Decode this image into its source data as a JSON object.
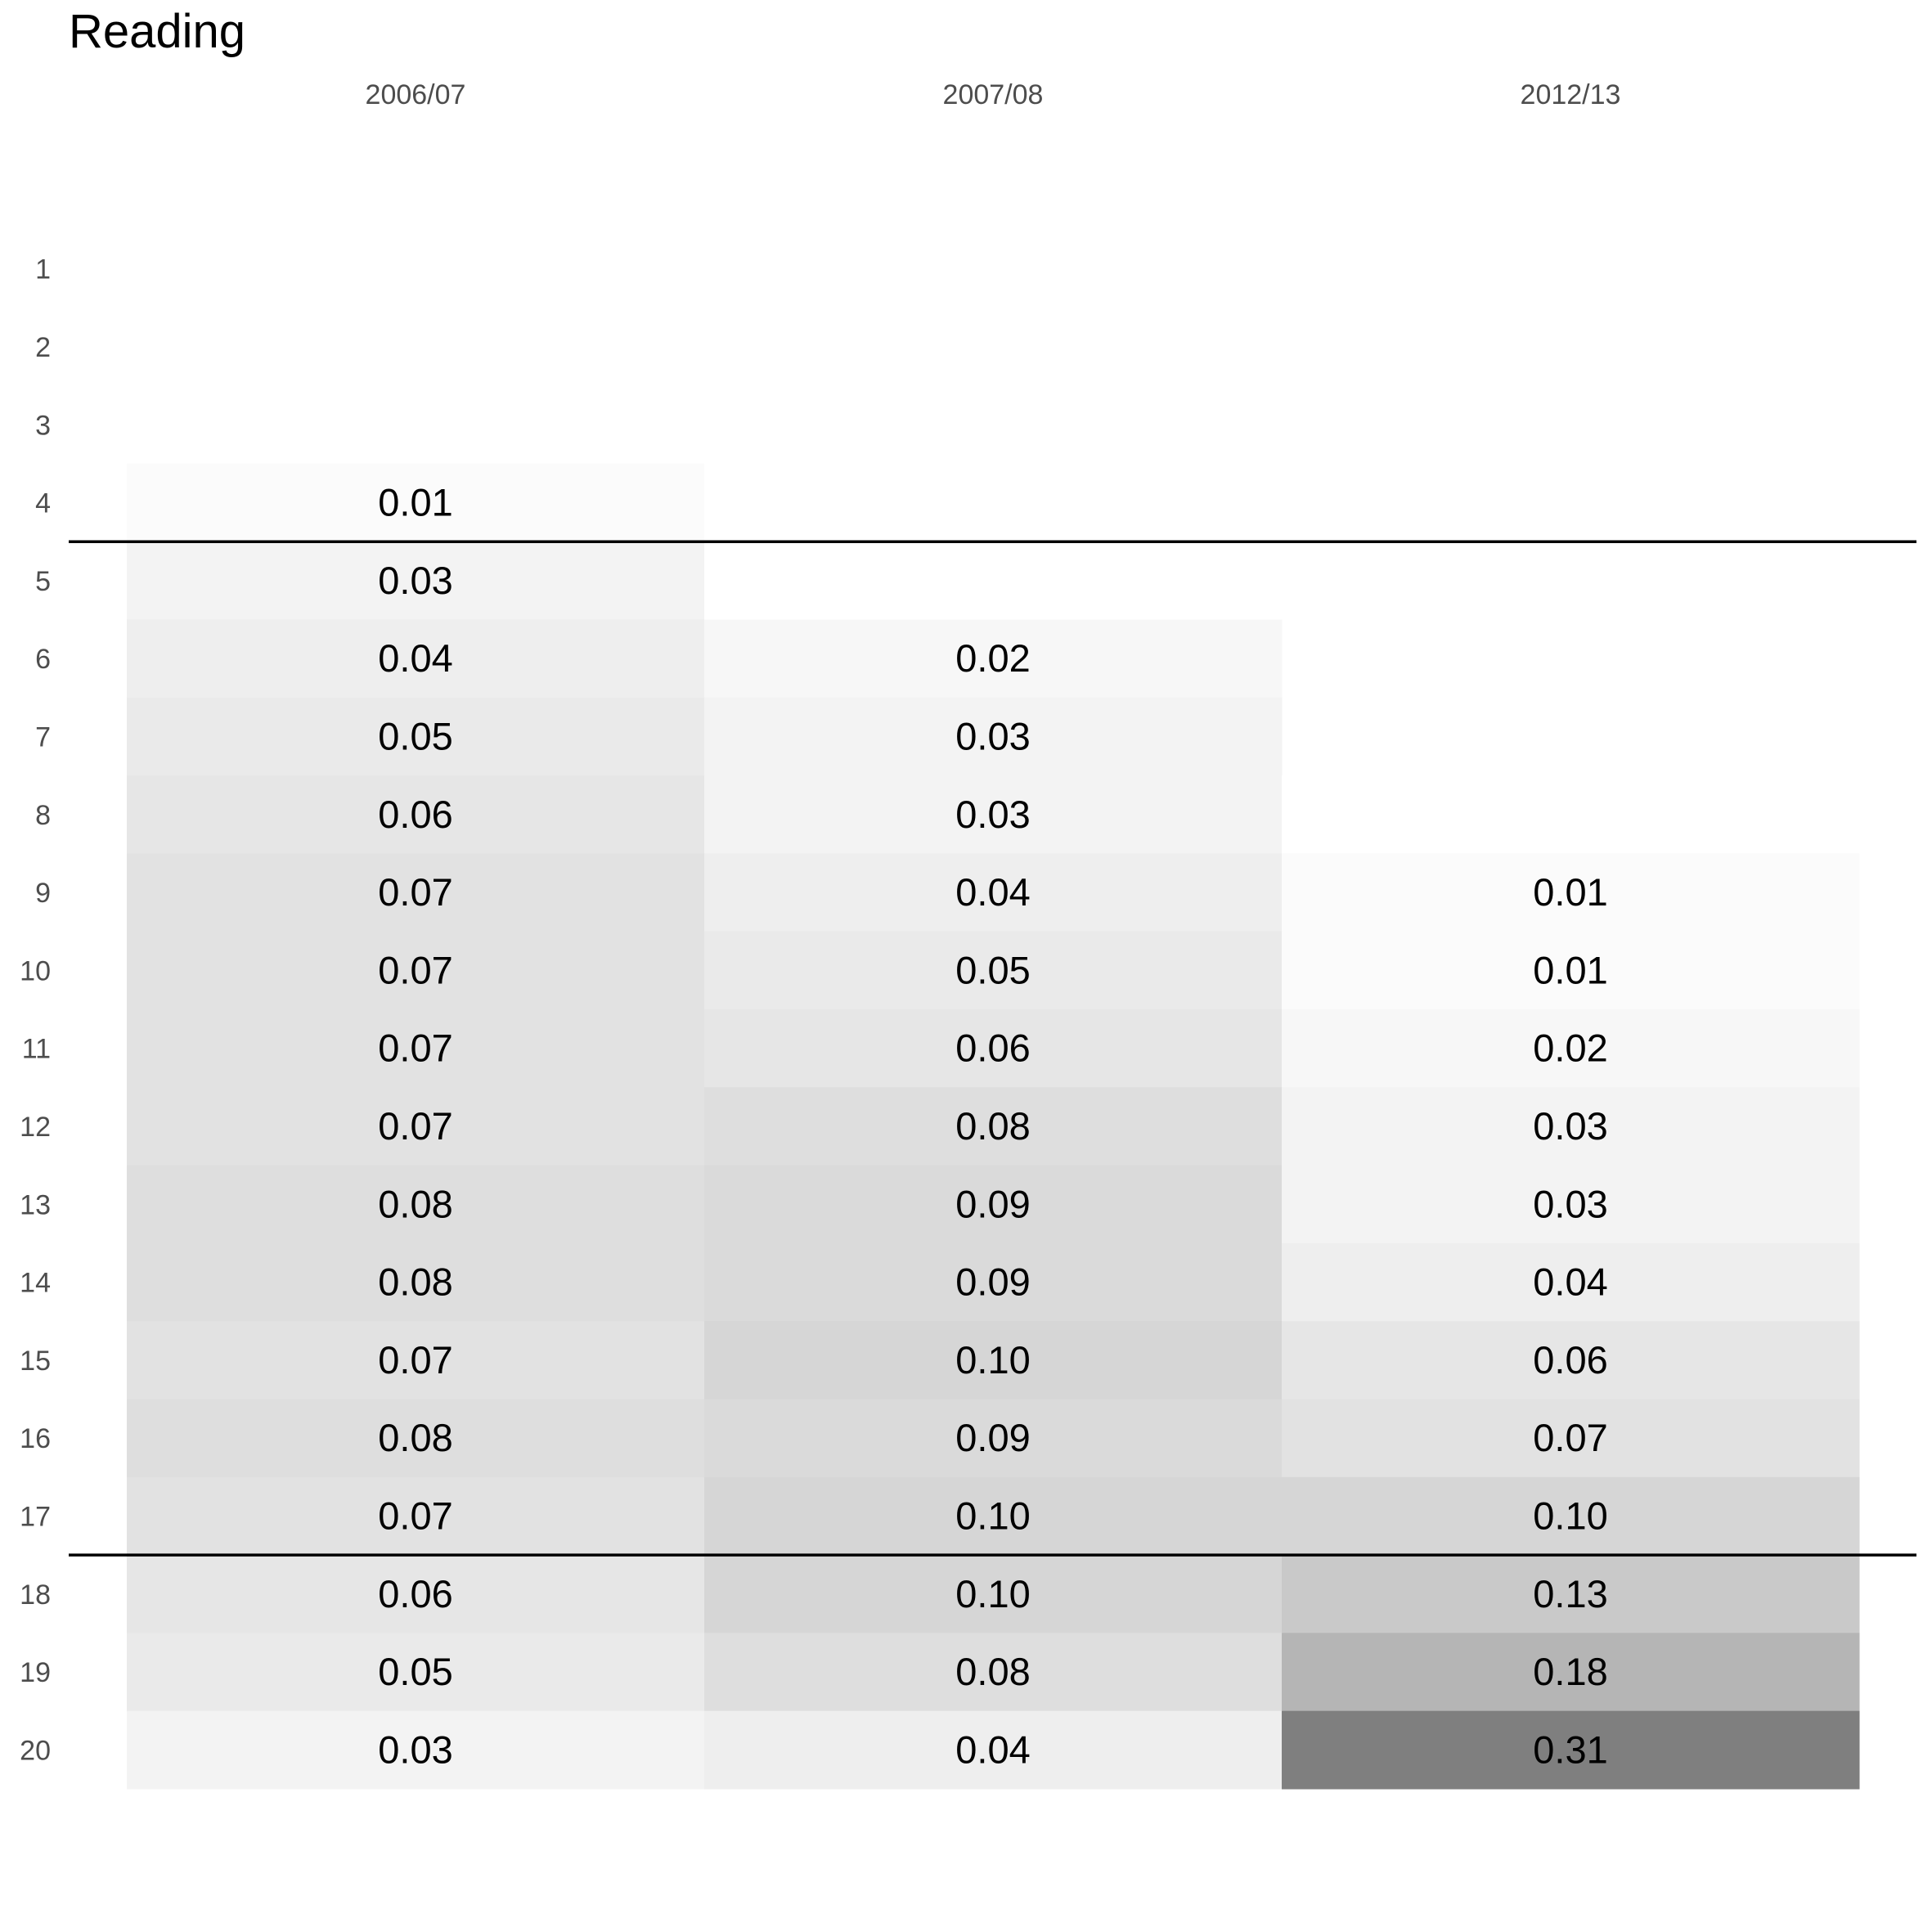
{
  "chart_data": {
    "type": "heatmap",
    "title": "Reading",
    "columns": [
      "2006/07",
      "2007/08",
      "2012/13"
    ],
    "rows": [
      "1",
      "2",
      "3",
      "4",
      "5",
      "6",
      "7",
      "8",
      "9",
      "10",
      "11",
      "12",
      "13",
      "14",
      "15",
      "16",
      "17",
      "18",
      "19",
      "20"
    ],
    "values": [
      [
        null,
        null,
        null
      ],
      [
        null,
        null,
        null
      ],
      [
        null,
        null,
        null
      ],
      [
        0.01,
        0.0,
        null
      ],
      [
        0.03,
        0.0,
        null
      ],
      [
        0.04,
        0.02,
        null
      ],
      [
        0.05,
        0.03,
        null
      ],
      [
        0.06,
        0.03,
        0.0
      ],
      [
        0.07,
        0.04,
        0.01
      ],
      [
        0.07,
        0.05,
        0.01
      ],
      [
        0.07,
        0.06,
        0.02
      ],
      [
        0.07,
        0.08,
        0.03
      ],
      [
        0.08,
        0.09,
        0.03
      ],
      [
        0.08,
        0.09,
        0.04
      ],
      [
        0.07,
        0.1,
        0.06
      ],
      [
        0.08,
        0.09,
        0.07
      ],
      [
        0.07,
        0.1,
        0.1
      ],
      [
        0.06,
        0.1,
        0.13
      ],
      [
        0.05,
        0.08,
        0.18
      ],
      [
        0.03,
        0.04,
        0.31
      ]
    ],
    "labels": [
      [
        "",
        "",
        ""
      ],
      [
        "",
        "",
        ""
      ],
      [
        "",
        "",
        ""
      ],
      [
        "0.01",
        "",
        ""
      ],
      [
        "0.03",
        "",
        ""
      ],
      [
        "0.04",
        "0.02",
        ""
      ],
      [
        "0.05",
        "0.03",
        ""
      ],
      [
        "0.06",
        "0.03",
        ""
      ],
      [
        "0.07",
        "0.04",
        "0.01"
      ],
      [
        "0.07",
        "0.05",
        "0.01"
      ],
      [
        "0.07",
        "0.06",
        "0.02"
      ],
      [
        "0.07",
        "0.08",
        "0.03"
      ],
      [
        "0.08",
        "0.09",
        "0.03"
      ],
      [
        "0.08",
        "0.09",
        "0.04"
      ],
      [
        "0.07",
        "0.10",
        "0.06"
      ],
      [
        "0.08",
        "0.09",
        "0.07"
      ],
      [
        "0.07",
        "0.10",
        "0.10"
      ],
      [
        "0.06",
        "0.10",
        "0.13"
      ],
      [
        "0.05",
        "0.08",
        "0.18"
      ],
      [
        "0.03",
        "0.04",
        "0.31"
      ]
    ],
    "color_low": "#ffffff",
    "color_high": "#7f7f7f",
    "value_range": [
      0,
      0.31
    ],
    "reference_lines_after_rows": [
      "4",
      "17"
    ],
    "grid": false,
    "legend": "none"
  }
}
